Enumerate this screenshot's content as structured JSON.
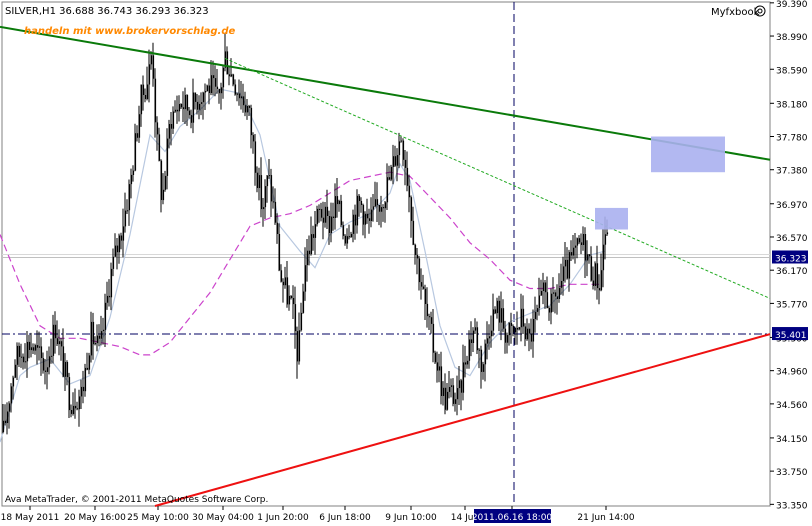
{
  "header": {
    "symbol_line": "SILVER,H1  36.688 36.743 36.293 36.323",
    "watermark": "handeln mit www.brokervorschlag.de",
    "brand": "Myfxbook",
    "copyright": "Ava MetaTrader, © 2001-2011 MetaQuotes Software Corp."
  },
  "colors": {
    "candles": "#000000",
    "green_trendline": "#0a7a0a",
    "red_trendline": "#ee1111",
    "slow_ma": "#cc44cc",
    "fast_ma": "#b8c8e0",
    "zone": "#aab0f0",
    "watermark": "#ff8800"
  },
  "chart_data": {
    "type": "candlestick",
    "symbol": "SILVER",
    "timeframe": "H1",
    "ylim": [
      33.33,
      39.4
    ],
    "y_ticks": [
      33.35,
      33.75,
      34.15,
      34.56,
      34.96,
      35.36,
      35.77,
      36.17,
      36.57,
      36.97,
      37.38,
      37.78,
      38.18,
      38.59,
      38.99,
      39.39
    ],
    "y_tick_labels": [
      "33.350",
      "33.750",
      "34.150",
      "34.560",
      "34.960",
      "35.360",
      "35.770",
      "36.170",
      "36.570",
      "36.970",
      "37.380",
      "37.780",
      "38.180",
      "38.590",
      "38.990",
      "39.390"
    ],
    "x_labels": [
      "18 May 2011",
      "20 May 16:00",
      "25 May 10:00",
      "30 May 04:00",
      "1 Jun 20:00",
      "6 Jun 18:00",
      "9 Jun 10:00",
      "14 Jun",
      "2011.06.16 18:00",
      "21 Jun 14:00"
    ],
    "x_label_ticks": [
      30,
      95,
      158,
      223,
      283,
      345,
      411,
      465,
      512,
      606
    ],
    "series_points": [
      [
        0,
        34.0
      ],
      [
        15,
        35.1
      ],
      [
        30,
        35.3
      ],
      [
        45,
        35.0
      ],
      [
        55,
        35.5
      ],
      [
        70,
        34.6
      ],
      [
        82,
        34.7
      ],
      [
        90,
        35.4
      ],
      [
        100,
        35.2
      ],
      [
        110,
        36.1
      ],
      [
        120,
        36.6
      ],
      [
        130,
        37.2
      ],
      [
        140,
        38.2
      ],
      [
        148,
        38.5
      ],
      [
        152,
        38.85
      ],
      [
        156,
        37.8
      ],
      [
        162,
        37.0
      ],
      [
        170,
        38.0
      ],
      [
        180,
        38.2
      ],
      [
        190,
        38.1
      ],
      [
        200,
        38.3
      ],
      [
        210,
        38.4
      ],
      [
        218,
        38.2
      ],
      [
        225,
        38.75
      ],
      [
        232,
        38.5
      ],
      [
        240,
        38.3
      ],
      [
        248,
        38.1
      ],
      [
        255,
        37.5
      ],
      [
        262,
        36.9
      ],
      [
        268,
        37.3
      ],
      [
        275,
        36.8
      ],
      [
        280,
        36.1
      ],
      [
        286,
        35.9
      ],
      [
        292,
        35.7
      ],
      [
        298,
        35.1
      ],
      [
        304,
        36.2
      ],
      [
        312,
        36.6
      ],
      [
        320,
        36.9
      ],
      [
        328,
        36.7
      ],
      [
        336,
        37.0
      ],
      [
        344,
        36.6
      ],
      [
        352,
        36.8
      ],
      [
        360,
        37.0
      ],
      [
        368,
        36.7
      ],
      [
        376,
        36.9
      ],
      [
        384,
        37.1
      ],
      [
        390,
        37.3
      ],
      [
        396,
        37.6
      ],
      [
        401,
        37.8
      ],
      [
        405,
        37.5
      ],
      [
        410,
        37.0
      ],
      [
        415,
        36.4
      ],
      [
        420,
        36.1
      ],
      [
        425,
        35.7
      ],
      [
        432,
        35.3
      ],
      [
        438,
        35.0
      ],
      [
        444,
        34.6
      ],
      [
        450,
        34.7
      ],
      [
        458,
        34.6
      ],
      [
        466,
        35.2
      ],
      [
        474,
        35.5
      ],
      [
        482,
        35.0
      ],
      [
        490,
        35.6
      ],
      [
        498,
        35.7
      ],
      [
        506,
        35.4
      ],
      [
        514,
        35.4
      ],
      [
        522,
        35.6
      ],
      [
        528,
        35.3
      ],
      [
        536,
        35.6
      ],
      [
        544,
        35.9
      ],
      [
        552,
        35.7
      ],
      [
        560,
        36.0
      ],
      [
        568,
        36.2
      ],
      [
        576,
        36.4
      ],
      [
        584,
        36.5
      ],
      [
        590,
        36.2
      ],
      [
        596,
        36.1
      ],
      [
        600,
        36.0
      ],
      [
        603,
        36.5
      ],
      [
        606,
        36.7
      ],
      [
        608,
        36.3
      ]
    ],
    "slow_ma_points": [
      [
        0,
        36.6
      ],
      [
        20,
        36.0
      ],
      [
        40,
        35.5
      ],
      [
        60,
        35.35
      ],
      [
        80,
        35.35
      ],
      [
        100,
        35.3
      ],
      [
        120,
        35.25
      ],
      [
        140,
        35.15
      ],
      [
        150,
        35.15
      ],
      [
        170,
        35.3
      ],
      [
        190,
        35.6
      ],
      [
        210,
        35.9
      ],
      [
        230,
        36.3
      ],
      [
        250,
        36.7
      ],
      [
        270,
        36.8
      ],
      [
        290,
        36.85
      ],
      [
        310,
        36.95
      ],
      [
        330,
        37.1
      ],
      [
        350,
        37.25
      ],
      [
        370,
        37.3
      ],
      [
        390,
        37.35
      ],
      [
        410,
        37.3
      ],
      [
        430,
        37.05
      ],
      [
        450,
        36.8
      ],
      [
        470,
        36.5
      ],
      [
        490,
        36.3
      ],
      [
        510,
        36.05
      ],
      [
        530,
        35.95
      ],
      [
        550,
        35.95
      ],
      [
        570,
        36.0
      ],
      [
        590,
        36.0
      ],
      [
        600,
        36.0
      ]
    ],
    "fast_ma_points": [
      [
        0,
        34.1
      ],
      [
        10,
        34.5
      ],
      [
        20,
        34.9
      ],
      [
        30,
        35.0
      ],
      [
        50,
        35.1
      ],
      [
        70,
        34.8
      ],
      [
        90,
        34.9
      ],
      [
        110,
        35.6
      ],
      [
        130,
        36.6
      ],
      [
        150,
        37.8
      ],
      [
        165,
        37.6
      ],
      [
        180,
        37.9
      ],
      [
        200,
        38.1
      ],
      [
        220,
        38.35
      ],
      [
        240,
        38.3
      ],
      [
        260,
        37.8
      ],
      [
        280,
        36.7
      ],
      [
        300,
        36.4
      ],
      [
        315,
        36.2
      ],
      [
        330,
        36.6
      ],
      [
        350,
        36.75
      ],
      [
        370,
        36.85
      ],
      [
        390,
        37.1
      ],
      [
        400,
        37.45
      ],
      [
        410,
        37.25
      ],
      [
        425,
        36.4
      ],
      [
        440,
        35.5
      ],
      [
        455,
        35.0
      ],
      [
        470,
        34.9
      ],
      [
        490,
        35.3
      ],
      [
        510,
        35.55
      ],
      [
        530,
        35.65
      ],
      [
        550,
        35.75
      ],
      [
        570,
        36.0
      ],
      [
        590,
        36.35
      ],
      [
        605,
        36.4
      ]
    ],
    "green_trendline": {
      "x1": 0,
      "y1": 39.1,
      "x2": 770,
      "y2": 37.5
    },
    "green_dotted_trendline": {
      "x1": 225,
      "y1": 38.72,
      "x2": 770,
      "y2": 35.83
    },
    "red_trendline": {
      "x1": 155,
      "y1": 33.33,
      "x2": 770,
      "y2": 35.4
    },
    "dashdot_level": {
      "price": 35.401,
      "label": "35.401"
    },
    "current_price": {
      "price": 36.323,
      "label": "36.323"
    },
    "vertical_cursor_x": 514,
    "zones": [
      {
        "x": 651,
        "w": 74,
        "top": 37.78,
        "bottom": 37.35
      },
      {
        "x": 595,
        "w": 33,
        "top": 36.92,
        "bottom": 36.66
      }
    ]
  }
}
